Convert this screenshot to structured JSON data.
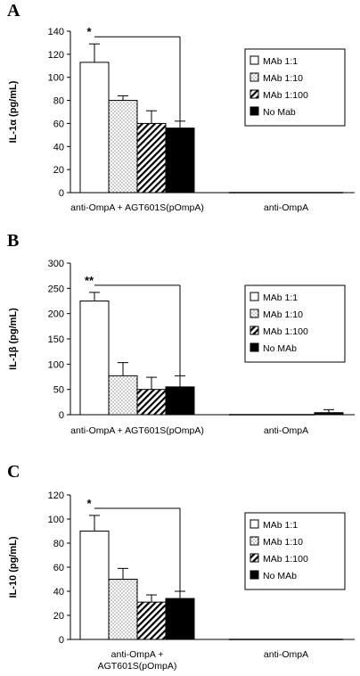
{
  "chart_data": [
    {
      "type": "bar",
      "panel": "A",
      "ylabel": "IL-1α (pg/mL)",
      "ylim": [
        0,
        140
      ],
      "yticks": [
        0,
        20,
        40,
        60,
        80,
        100,
        120,
        140
      ],
      "categories": [
        "anti-OmpA + AGT601S(pOmpA)",
        "anti-OmpA"
      ],
      "series": [
        {
          "name": "MAb 1:1",
          "values": [
            113,
            0
          ],
          "errors": [
            16,
            0
          ],
          "pattern": "white"
        },
        {
          "name": "MAb 1:10",
          "values": [
            80,
            0
          ],
          "errors": [
            4,
            0
          ],
          "pattern": "dots"
        },
        {
          "name": "MAb 1:100",
          "values": [
            60,
            0
          ],
          "errors": [
            11,
            0
          ],
          "pattern": "hatch"
        },
        {
          "name": "No Mab",
          "values": [
            56,
            0
          ],
          "errors": [
            6,
            0
          ],
          "pattern": "black"
        }
      ],
      "significance": {
        "label": "*",
        "from_series": 0,
        "to_series": 3
      },
      "legend": "right"
    },
    {
      "type": "bar",
      "panel": "B",
      "ylabel": "IL-1β (pg/mL)",
      "ylim": [
        0,
        300
      ],
      "yticks": [
        0,
        50,
        100,
        150,
        200,
        250,
        300
      ],
      "categories": [
        "anti-OmpA + AGT601S(pOmpA)",
        "anti-OmpA"
      ],
      "series": [
        {
          "name": "MAb 1:1",
          "values": [
            225,
            0
          ],
          "errors": [
            17,
            0
          ],
          "pattern": "white"
        },
        {
          "name": "MAb 1:10",
          "values": [
            77,
            0
          ],
          "errors": [
            26,
            0
          ],
          "pattern": "dots"
        },
        {
          "name": "MAb 1:100",
          "values": [
            50,
            0
          ],
          "errors": [
            24,
            0
          ],
          "pattern": "hatch"
        },
        {
          "name": "No MAb",
          "values": [
            55,
            4
          ],
          "errors": [
            22,
            6
          ],
          "pattern": "black"
        }
      ],
      "significance": {
        "label": "**",
        "from_series": 0,
        "to_series": 3
      },
      "legend": "right"
    },
    {
      "type": "bar",
      "panel": "C",
      "ylabel": "IL-10 (pg/mL)",
      "ylim": [
        0,
        120
      ],
      "yticks": [
        0,
        20,
        40,
        60,
        80,
        100,
        120
      ],
      "categories": [
        "anti-OmpA +\nAGT601S(pOmpA)",
        "anti-OmpA"
      ],
      "series": [
        {
          "name": "MAb 1:1",
          "values": [
            90,
            0
          ],
          "errors": [
            13,
            0
          ],
          "pattern": "white"
        },
        {
          "name": "MAb 1:10",
          "values": [
            50,
            0
          ],
          "errors": [
            9,
            0
          ],
          "pattern": "dots"
        },
        {
          "name": "MAb 1:100",
          "values": [
            31,
            0
          ],
          "errors": [
            6,
            0
          ],
          "pattern": "hatch"
        },
        {
          "name": "No MAb",
          "values": [
            34,
            0
          ],
          "errors": [
            6,
            0
          ],
          "pattern": "black"
        }
      ],
      "significance": {
        "label": "*",
        "from_series": 0,
        "to_series": 3
      },
      "legend": "right"
    }
  ]
}
